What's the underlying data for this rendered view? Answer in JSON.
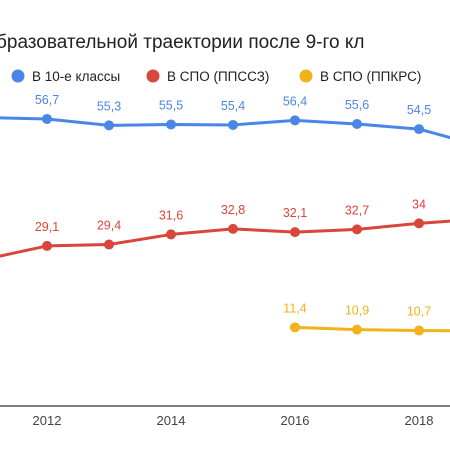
{
  "chart_data": {
    "type": "line",
    "title": "бразовательной траектории после 9-го кл",
    "xlabel": "",
    "ylabel": "",
    "x": [
      2011,
      2012,
      2013,
      2014,
      2015,
      2016,
      2017,
      2018,
      2019
    ],
    "x_ticks": [
      "2012",
      "2014",
      "2016",
      "2018"
    ],
    "legend_position": "top",
    "grid": false,
    "series": [
      {
        "name": "В 10-е классы",
        "color": "#4a86e8",
        "values": [
          null,
          56.7,
          55.3,
          55.5,
          55.4,
          56.4,
          55.6,
          54.5,
          null
        ],
        "line_values": [
          57.0,
          56.7,
          55.3,
          55.5,
          55.4,
          56.4,
          55.6,
          54.5,
          50.8
        ]
      },
      {
        "name": "В СПО (ППССЗ)",
        "color": "#d9463b",
        "values": [
          null,
          29.1,
          29.4,
          31.6,
          32.8,
          32.1,
          32.7,
          34,
          null
        ],
        "line_values": [
          26.2,
          29.1,
          29.4,
          31.6,
          32.8,
          32.1,
          32.7,
          34,
          35.0
        ]
      },
      {
        "name": "В СПО (ППКРС)",
        "color": "#f2b21b",
        "values": [
          null,
          null,
          null,
          null,
          null,
          11.4,
          10.9,
          10.7,
          null
        ],
        "line_values": [
          null,
          null,
          null,
          null,
          null,
          11.4,
          10.9,
          10.7,
          10.6
        ]
      }
    ]
  }
}
